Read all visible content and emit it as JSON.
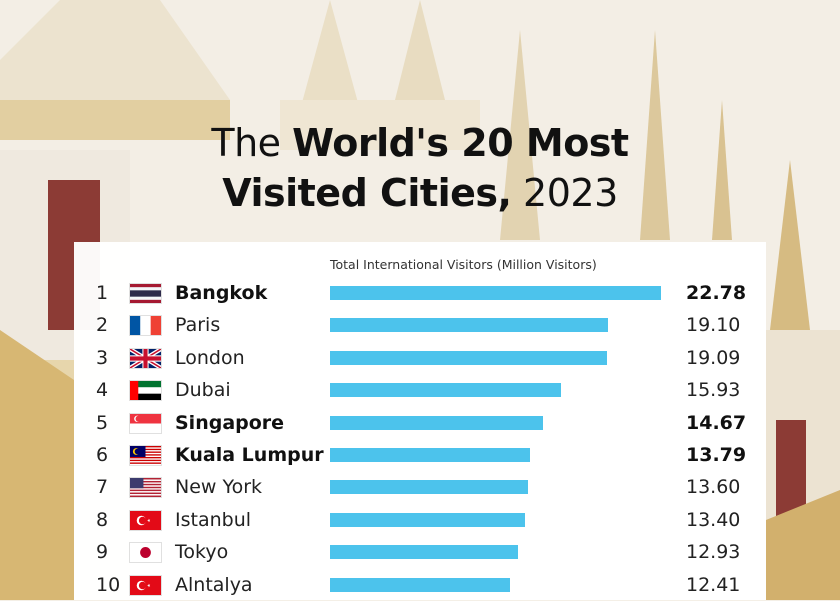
{
  "title": {
    "part1": "The ",
    "part2": "World's 20 Most",
    "part3": "Visited Cities,",
    "part4": " 2023"
  },
  "colors": {
    "bar": "#4cc3ec"
  },
  "chart_data": {
    "type": "bar",
    "orientation": "horizontal",
    "xlabel": "Total International Visitors (Million Visitors)",
    "xlim": [
      0,
      22.78
    ],
    "rows": [
      {
        "rank": "1",
        "city": "Bangkok",
        "value": 22.78,
        "label": "22.78",
        "flag": "thailand-flag",
        "highlight": true
      },
      {
        "rank": "2",
        "city": "Paris",
        "value": 19.1,
        "label": "19.10",
        "flag": "france-flag",
        "highlight": false
      },
      {
        "rank": "3",
        "city": "London",
        "value": 19.09,
        "label": "19.09",
        "flag": "uk-flag",
        "highlight": false
      },
      {
        "rank": "4",
        "city": "Dubai",
        "value": 15.93,
        "label": "15.93",
        "flag": "uae-flag",
        "highlight": false
      },
      {
        "rank": "5",
        "city": "Singapore",
        "value": 14.67,
        "label": "14.67",
        "flag": "singapore-flag",
        "highlight": true
      },
      {
        "rank": "6",
        "city": "Kuala Lumpur",
        "value": 13.79,
        "label": "13.79",
        "flag": "malaysia-flag",
        "highlight": true
      },
      {
        "rank": "7",
        "city": "New York",
        "value": 13.6,
        "label": "13.60",
        "flag": "usa-flag",
        "highlight": false
      },
      {
        "rank": "8",
        "city": "Istanbul",
        "value": 13.4,
        "label": "13.40",
        "flag": "turkey-flag",
        "highlight": false
      },
      {
        "rank": "9",
        "city": "Tokyo",
        "value": 12.93,
        "label": "12.93",
        "flag": "japan-flag",
        "highlight": false
      },
      {
        "rank": "10",
        "city": "Alntalya",
        "value": 12.41,
        "label": "12.41",
        "flag": "turkey-flag",
        "highlight": false
      }
    ]
  }
}
